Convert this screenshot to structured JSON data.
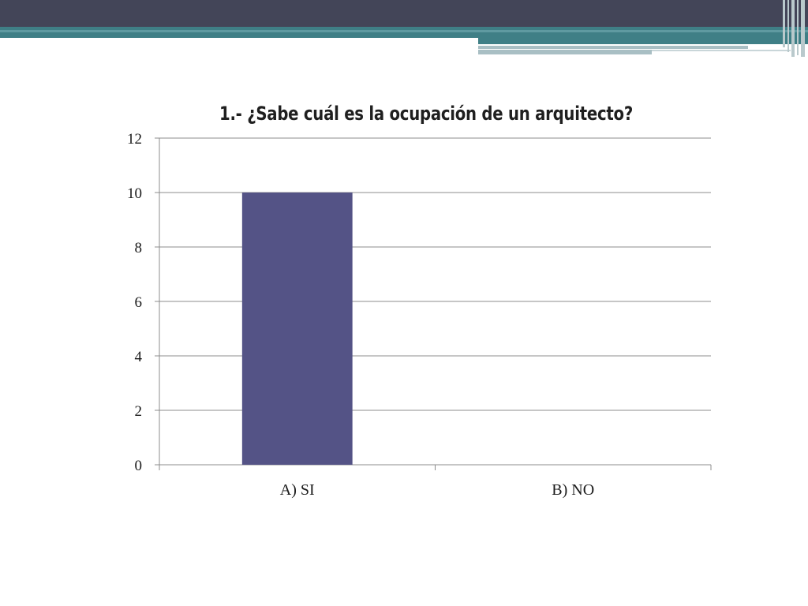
{
  "chart_data": {
    "type": "bar",
    "title": "1.- ¿Sabe cuál es la ocupación de un arquitecto?",
    "categories": [
      "A) SI",
      "B) NO"
    ],
    "values": [
      10,
      0
    ],
    "ylim": [
      0,
      12
    ],
    "yticks": [
      0,
      2,
      4,
      6,
      8,
      10,
      12
    ],
    "xlabel": "",
    "ylabel": "",
    "grid": true,
    "bar_color": "#545386"
  },
  "theme": {
    "header_dark": "#434558",
    "header_teal": "#3f7f86",
    "header_light": "#a9bfc4"
  }
}
